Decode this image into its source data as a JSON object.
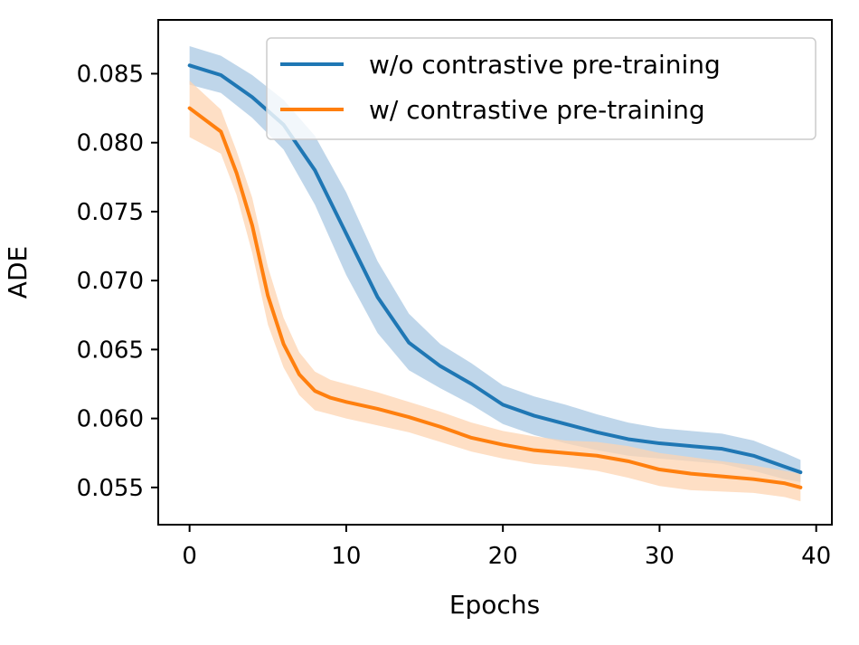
{
  "chart_data": {
    "type": "line",
    "xlabel": "Epochs",
    "ylabel": "ADE",
    "xlim": [
      -2,
      41
    ],
    "ylim": [
      0.0523,
      0.0889
    ],
    "xticks": [
      0,
      10,
      20,
      30,
      40
    ],
    "yticks": [
      0.055,
      0.06,
      0.065,
      0.07,
      0.075,
      0.08,
      0.085
    ],
    "xtick_labels": [
      "0",
      "10",
      "20",
      "30",
      "40"
    ],
    "ytick_labels": [
      "0.055",
      "0.060",
      "0.065",
      "0.070",
      "0.075",
      "0.080",
      "0.085"
    ],
    "grid": false,
    "legend_position": "top-right",
    "series": [
      {
        "name": "w/o contrastive pre-training",
        "color": "#1f77b4",
        "band_color": "#aac8e3",
        "x": [
          0,
          2,
          4,
          6,
          8,
          10,
          12,
          14,
          16,
          18,
          20,
          22,
          24,
          26,
          28,
          30,
          32,
          34,
          36,
          38,
          39
        ],
        "values": [
          0.0856,
          0.0849,
          0.0833,
          0.0813,
          0.078,
          0.0734,
          0.0688,
          0.0655,
          0.0638,
          0.0625,
          0.061,
          0.0602,
          0.0596,
          0.059,
          0.0585,
          0.0582,
          0.058,
          0.0578,
          0.0573,
          0.0565,
          0.0561
        ],
        "lower": [
          0.0842,
          0.0836,
          0.0818,
          0.0795,
          0.0755,
          0.0704,
          0.0662,
          0.0635,
          0.0622,
          0.061,
          0.0596,
          0.0588,
          0.0582,
          0.0577,
          0.0573,
          0.0571,
          0.0569,
          0.0567,
          0.0562,
          0.0556,
          0.0554
        ],
        "upper": [
          0.087,
          0.0863,
          0.0849,
          0.0831,
          0.0805,
          0.0764,
          0.0714,
          0.0676,
          0.0654,
          0.064,
          0.0624,
          0.0616,
          0.061,
          0.0603,
          0.0597,
          0.0593,
          0.0591,
          0.0589,
          0.0584,
          0.0575,
          0.057
        ]
      },
      {
        "name": "w/ contrastive pre-training",
        "color": "#ff7f0e",
        "band_color": "#fdd4b2",
        "x": [
          0,
          2,
          3,
          4,
          5,
          6,
          7,
          8,
          9,
          10,
          12,
          14,
          16,
          18,
          20,
          22,
          24,
          26,
          28,
          30,
          32,
          34,
          36,
          38,
          39
        ],
        "values": [
          0.0825,
          0.0808,
          0.0778,
          0.074,
          0.0689,
          0.0654,
          0.0632,
          0.062,
          0.0615,
          0.0612,
          0.0607,
          0.0601,
          0.0594,
          0.0586,
          0.0581,
          0.0577,
          0.0575,
          0.0573,
          0.0569,
          0.0563,
          0.056,
          0.0558,
          0.0556,
          0.0553,
          0.055
        ],
        "lower": [
          0.0804,
          0.0792,
          0.0762,
          0.072,
          0.0668,
          0.0637,
          0.0617,
          0.0606,
          0.0603,
          0.06,
          0.0595,
          0.059,
          0.0583,
          0.0576,
          0.0571,
          0.0567,
          0.0565,
          0.0562,
          0.0557,
          0.0551,
          0.0548,
          0.0547,
          0.0546,
          0.0543,
          0.054
        ],
        "upper": [
          0.0845,
          0.0824,
          0.0794,
          0.076,
          0.071,
          0.0673,
          0.0648,
          0.0634,
          0.0628,
          0.0625,
          0.0619,
          0.0612,
          0.0605,
          0.0597,
          0.0591,
          0.0587,
          0.0584,
          0.0583,
          0.058,
          0.0575,
          0.0572,
          0.0569,
          0.0566,
          0.0562,
          0.056
        ]
      }
    ]
  }
}
